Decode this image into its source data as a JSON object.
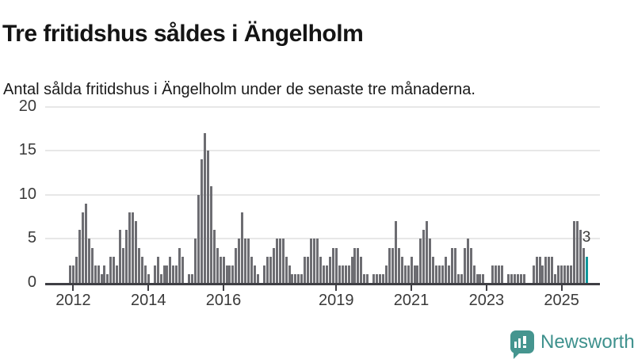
{
  "header": {
    "title": "Tre fritidshus såldes i Ängelholm",
    "subtitle": "Antal sålda fritidshus i Ängelholm under de senaste tre månaderna."
  },
  "chart_data": {
    "type": "bar",
    "title": "Tre fritidshus såldes i Ängelholm",
    "subtitle": "Antal sålda fritidshus i Ängelholm under de senaste tre månaderna.",
    "xlabel": "",
    "ylabel": "",
    "ylim": [
      0,
      20
    ],
    "y_ticks": [
      0,
      5,
      10,
      15,
      20
    ],
    "x_ticks": [
      "2012",
      "2014",
      "2016",
      "2019",
      "2021",
      "2023",
      "2025"
    ],
    "grid": "horizontal",
    "values": [
      2,
      2,
      3,
      6,
      8,
      9,
      5,
      4,
      2,
      2,
      1,
      2,
      1,
      3,
      3,
      2,
      6,
      4,
      6,
      8,
      8,
      7,
      4,
      3,
      2,
      1,
      0,
      2,
      3,
      1,
      2,
      2,
      3,
      2,
      2,
      4,
      3,
      0,
      1,
      1,
      5,
      10,
      14,
      17,
      15,
      11,
      6,
      4,
      3,
      3,
      2,
      2,
      2,
      4,
      5,
      8,
      5,
      5,
      3,
      2,
      1,
      0,
      2,
      3,
      3,
      4,
      5,
      5,
      5,
      3,
      2,
      1,
      1,
      1,
      1,
      3,
      3,
      5,
      5,
      5,
      3,
      2,
      2,
      3,
      4,
      4,
      2,
      2,
      2,
      2,
      3,
      4,
      4,
      3,
      1,
      1,
      0,
      1,
      1,
      1,
      1,
      2,
      4,
      4,
      7,
      4,
      3,
      2,
      2,
      3,
      2,
      2,
      5,
      6,
      7,
      5,
      3,
      2,
      2,
      2,
      3,
      2,
      4,
      4,
      1,
      1,
      4,
      5,
      4,
      2,
      1,
      1,
      1,
      0,
      0,
      2,
      2,
      2,
      2,
      0,
      1,
      1,
      1,
      1,
      1,
      1,
      0,
      0,
      2,
      3,
      3,
      2,
      3,
      3,
      3,
      1,
      2,
      2,
      2,
      2,
      2,
      7,
      7,
      6,
      4,
      3
    ],
    "last_value_label": "3",
    "bar_color": "#6d6d72",
    "highlight_color": "#0e989c",
    "gridline_color": "#e7e7e7",
    "axis_color": "#3f3f44"
  },
  "branding": {
    "name": "Newsworthy",
    "icon": "newsworthy-bubble-chart-icon",
    "color": "#3E918D"
  }
}
